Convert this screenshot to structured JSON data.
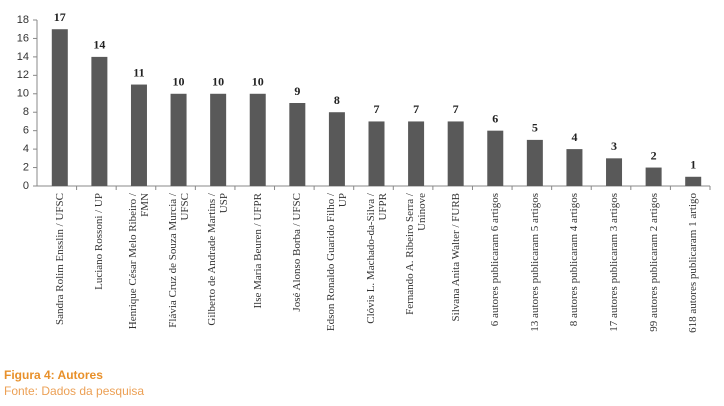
{
  "chart_data": {
    "type": "bar",
    "categories": [
      "Sandra Rolim Ensslin / UFSC",
      "Luciano Rossoni / UP",
      "Henrique César Melo Ribeiro / FMN",
      "Flávia Cruz de Souza Murcia / UFSC",
      "Gilberto de Andrade Martins / USP",
      "Ilse Maria Beuren / UFPR",
      "José Alonso Borba / UFSC",
      "Edson Ronaldo Guarido Filho / UP",
      "Clóvis L. Machado-da-Silva / UFPR",
      "Fernando A. Ribeiro Serra / Uninove",
      "Silvana Anita Walter / FURB",
      "6 autores publicaram 6 artigos",
      "13 autores publicaram 5 artigos",
      "8 autores publicaram 4 artigos",
      "17 autores publicaram 3 artigos",
      "99 autores publicaram 2 artigos",
      "618 autores publicaram 1 artigo"
    ],
    "values": [
      17,
      14,
      11,
      10,
      10,
      10,
      9,
      8,
      7,
      7,
      7,
      6,
      5,
      4,
      3,
      2,
      1
    ],
    "color": "#595959",
    "ylim": [
      0,
      18
    ],
    "yticks": [
      0,
      2,
      4,
      6,
      8,
      10,
      12,
      14,
      16,
      18
    ],
    "caption": "Figura 4: Autores",
    "source": "Fonte: Dados da pesquisa"
  }
}
